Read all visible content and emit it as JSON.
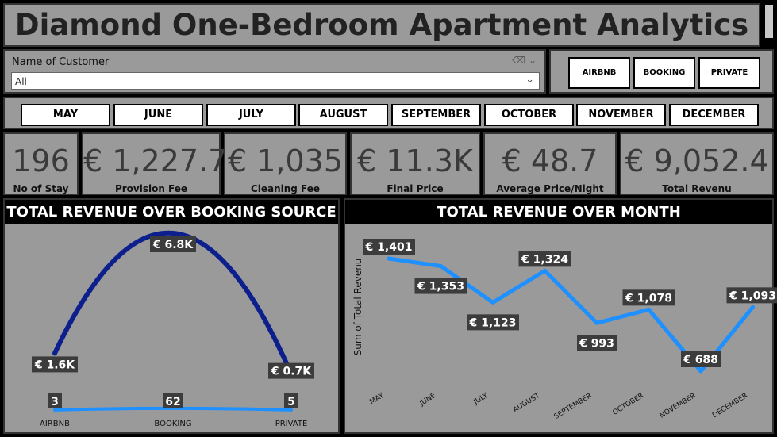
{
  "header": {
    "title": "Diamond One-Bedroom Apartment Analytics"
  },
  "filter": {
    "label": "Name of Customer",
    "value": "All"
  },
  "source_buttons": [
    "AIRBNB",
    "BOOKING",
    "PRIVATE"
  ],
  "month_buttons": [
    "MAY",
    "JUNE",
    "JULY",
    "AUGUST",
    "SEPTEMBER",
    "OCTOBER",
    "NOVEMBER",
    "DECEMBER"
  ],
  "kpis": [
    {
      "value": "196",
      "label": "No of Stay"
    },
    {
      "value": "€ 1,227.7",
      "label": "Provision Fee"
    },
    {
      "value": "€ 1,035",
      "label": "Cleaning Fee"
    },
    {
      "value": "€ 11.3K",
      "label": "Final Price"
    },
    {
      "value": "€ 48.7",
      "label": "Average Price/Night"
    },
    {
      "value": "€ 9,052.4",
      "label": "Total Revenu"
    }
  ],
  "colors": {
    "panel": "#9a9a9a",
    "revenue_line": "#0d1f8c",
    "count_line": "#1e90ff",
    "label_bg": "#3c3c3c"
  },
  "chart_data": [
    {
      "type": "line",
      "title": "TOTAL REVENUE OVER BOOKING SOURCE",
      "categories": [
        "AIRBNB",
        "BOOKING",
        "PRIVATE"
      ],
      "series": [
        {
          "values": [
            1600,
            6800,
            700
          ],
          "labels": [
            "€ 1.6K",
            "€ 6.8K",
            "€ 0.7K"
          ]
        },
        {
          "values": [
            3,
            62,
            5
          ],
          "labels": [
            "3",
            "62",
            "5"
          ]
        }
      ],
      "grid": false
    },
    {
      "type": "line",
      "title": "TOTAL REVENUE OVER MONTH",
      "ylabel": "Sum of Total Revenu",
      "categories": [
        "MAY",
        "JUNE",
        "JULY",
        "AUGUST",
        "SEPTEMBER",
        "OCTOBER",
        "NOVEMBER",
        "DECEMBER"
      ],
      "values": [
        1401,
        1353,
        1123,
        1324,
        993,
        1078,
        688,
        1093
      ],
      "labels": [
        "€ 1,401",
        "€ 1,353",
        "€ 1,123",
        "€ 1,324",
        "€ 993",
        "€ 1,078",
        "€ 688",
        "€ 1,093"
      ],
      "grid": false
    }
  ]
}
